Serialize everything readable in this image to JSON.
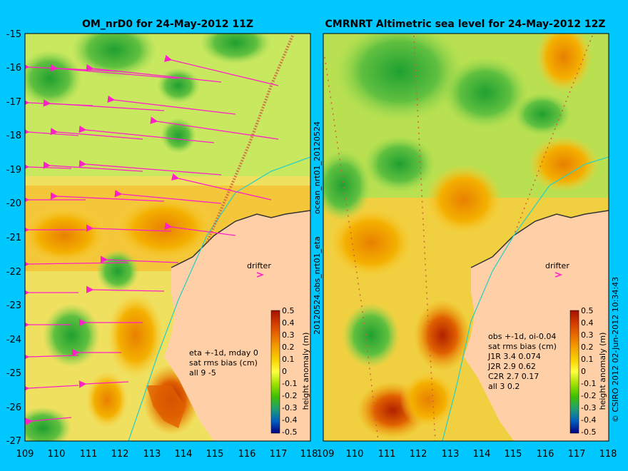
{
  "left_panel": {
    "title": "OM_nrD0 for 24-May-2012 11Z",
    "side_label_top": "ocean_nrt01_20120524",
    "side_label_bottom": "20120524.obs_nrt01_eta",
    "drifter_label": "drifter",
    "stats": [
      "eta +-1d, mday 0",
      "sat rms bias (cm)",
      "all 9 -5"
    ],
    "colorbar_label": "height anomaly (m)"
  },
  "right_panel": {
    "title": "CMRNRT Altimetric sea level  for 24-May-2012 12Z",
    "drifter_label": "drifter",
    "stats": [
      "obs +-1d, oi-0.04",
      "sat rms bias (cm)",
      "J1R   3.4 0.074",
      "J2R   2.9 0.62",
      "C2R   2.7 0.17",
      "all 3 0.2"
    ],
    "colorbar_label": "height anomaly (m)",
    "credit": "© CSIRO 2012   02-Jun-2012 10:34:43"
  },
  "axes": {
    "y_ticks": [
      "-15",
      "-16",
      "-17",
      "-18",
      "-19",
      "-20",
      "-21",
      "-22",
      "-23",
      "-24",
      "-25",
      "-26",
      "-27"
    ],
    "x_ticks": [
      "109",
      "110",
      "111",
      "112",
      "113",
      "114",
      "115",
      "116",
      "117",
      "118"
    ]
  },
  "colorbar": {
    "ticks": [
      "0.5",
      "0.4",
      "0.3",
      "0.2",
      "0.1",
      "0",
      "-0.1",
      "-0.2",
      "-0.3",
      "-0.4",
      "-0.5"
    ],
    "colors": [
      "#a01000",
      "#d23a00",
      "#e86a00",
      "#f4a000",
      "#f8d000",
      "#ffff40",
      "#a0e000",
      "#40c000",
      "#20a070",
      "#0060c0",
      "#000080"
    ]
  },
  "colors": {
    "background": "#00c8ff",
    "land": "#ffd0a8",
    "sea_base": "#e8f080",
    "velocity_arrow": "#ff20c8"
  }
}
